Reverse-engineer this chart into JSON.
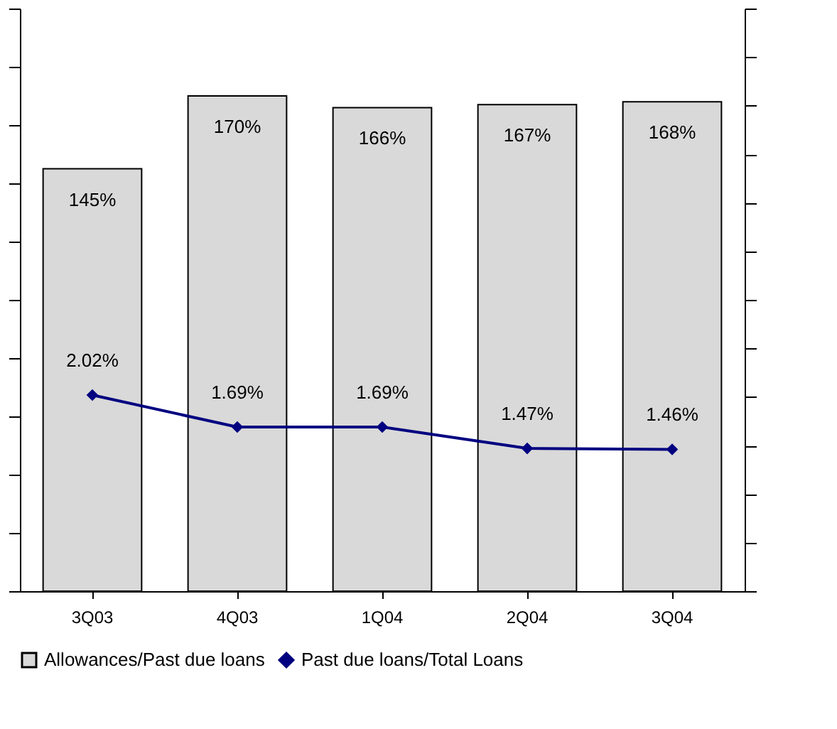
{
  "chart_data": {
    "type": "bar",
    "categories": [
      "3Q03",
      "4Q03",
      "1Q04",
      "2Q04",
      "3Q04"
    ],
    "series": [
      {
        "name": "Allowances/Past due loans",
        "color": "#d9d9d9",
        "values": [
          145,
          170,
          166,
          167,
          168
        ],
        "value_labels": [
          "145%",
          "170%",
          "166%",
          "167%",
          "168%"
        ]
      },
      {
        "name": "Past due loans/Total Loans",
        "type": "line",
        "axis": "y2",
        "color": "#000080",
        "values": [
          2.02,
          1.69,
          1.69,
          1.47,
          1.46
        ],
        "value_labels": [
          "2.02%",
          "1.69%",
          "1.69%",
          "1.47%",
          "1.46%"
        ]
      }
    ],
    "ylim": [
      0,
      200
    ],
    "yticks": [
      {
        "value": 0,
        "label": null
      },
      {
        "value": 20,
        "label": null
      },
      {
        "value": 40,
        "label": null
      },
      {
        "value": 60,
        "label": null
      },
      {
        "value": 80,
        "label": null
      },
      {
        "value": 100,
        "label": null
      },
      {
        "value": 120,
        "label": null
      },
      {
        "value": 140,
        "label": null
      },
      {
        "value": 160,
        "label": null
      },
      {
        "value": 180,
        "label": null
      },
      {
        "value": 200,
        "label": null
      }
    ],
    "y2lim": [
      0,
      6
    ],
    "y2ticks": [
      {
        "value": 0,
        "label": null
      },
      {
        "value": 0.5,
        "label": null
      },
      {
        "value": 1,
        "label": null
      },
      {
        "value": 1.5,
        "label": null
      },
      {
        "value": 2,
        "label": null
      },
      {
        "value": 2.5,
        "label": null
      },
      {
        "value": 3,
        "label": null
      },
      {
        "value": 3.5,
        "label": null
      },
      {
        "value": 4,
        "label": null
      },
      {
        "value": 4.5,
        "label": null
      },
      {
        "value": 5,
        "label": null
      },
      {
        "value": 5.5,
        "label": null
      },
      {
        "value": 6,
        "label": null
      }
    ],
    "tick_labels": "x",
    "grid": false,
    "legend": "bottom",
    "marker": "diamond",
    "line_style": "solid"
  }
}
